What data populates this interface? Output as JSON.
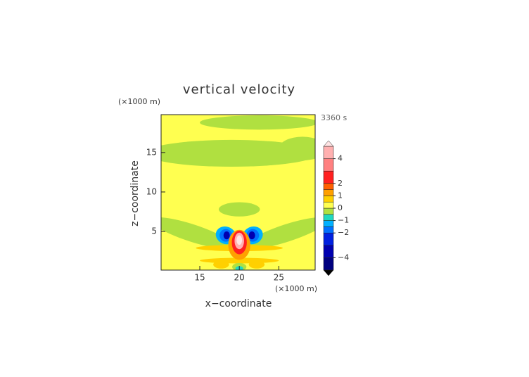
{
  "chart_data": {
    "type": "contour",
    "title": "vertical velocity",
    "x_label": "x−coordinate",
    "y_label": "z−coordinate",
    "x_unit": "(×1000 m)",
    "y_unit": "(×1000 m)",
    "time_label": "3360 s",
    "xlim": [
      10.1,
      29.6
    ],
    "ylim": [
      0.1,
      19.8
    ],
    "xticks": [
      15,
      20,
      25
    ],
    "yticks": [
      5,
      10,
      15
    ],
    "base_value": 0.25,
    "levels": [
      -5,
      -4,
      -3,
      -2,
      -1.5,
      -1,
      -0.5,
      0,
      0.5,
      1,
      1.5,
      2,
      3,
      4,
      5
    ],
    "colors": [
      "#000080",
      "#0000b0",
      "#0020e0",
      "#0070ff",
      "#00b0ff",
      "#20d8c0",
      "#b0e040",
      "#ffff50",
      "#ffd000",
      "#ffa000",
      "#ff6000",
      "#ff2020",
      "#ff8080",
      "#ffb0b0"
    ],
    "under_color": "#000000",
    "over_color": "#ffe4e4",
    "colorbar_ticks": [
      {
        "value": 4,
        "label": "4"
      },
      {
        "value": 2,
        "label": "2"
      },
      {
        "value": 1,
        "label": "1"
      },
      {
        "value": 0,
        "label": "0"
      },
      {
        "value": -1,
        "label": "−1"
      },
      {
        "value": -2,
        "label": "−2"
      },
      {
        "value": -4,
        "label": "−4"
      }
    ],
    "regions": [
      {
        "x": 22.5,
        "z": 18.8,
        "rx": 7.5,
        "rz": 0.9,
        "angle": 0,
        "value": -0.2
      },
      {
        "x": 19,
        "z": 14.9,
        "rx": 11,
        "rz": 1.7,
        "angle": 0,
        "value": -0.2
      },
      {
        "x": 28,
        "z": 15.5,
        "rx": 3,
        "rz": 1.5,
        "angle": 0,
        "value": -0.2
      },
      {
        "x": 20,
        "z": 7.8,
        "rx": 2.6,
        "rz": 0.9,
        "angle": 0,
        "value": -0.2
      },
      {
        "x": 14,
        "z": 4.8,
        "rx": 5.5,
        "rz": 1.1,
        "angle": -18,
        "value": -0.2
      },
      {
        "x": 26,
        "z": 4.8,
        "rx": 5.5,
        "rz": 1.1,
        "angle": 18,
        "value": -0.2
      },
      {
        "x": 20,
        "z": 2.9,
        "rx": 5.5,
        "rz": 0.4,
        "angle": 0,
        "value": 0.7
      },
      {
        "x": 20,
        "z": 1.3,
        "rx": 5,
        "rz": 0.35,
        "angle": 0,
        "value": 0.7
      },
      {
        "x": 17.7,
        "z": 0.8,
        "rx": 1,
        "rz": 0.5,
        "angle": 0,
        "value": 0.8
      },
      {
        "x": 22.2,
        "z": 0.8,
        "rx": 1,
        "rz": 0.5,
        "angle": 0,
        "value": 0.8
      },
      {
        "x": 20,
        "z": 0.5,
        "rx": 0.9,
        "rz": 0.5,
        "angle": 0,
        "value": -0.3
      },
      {
        "x": 20,
        "z": 0.3,
        "rx": 0.5,
        "rz": 0.3,
        "angle": 0,
        "value": -0.8
      },
      {
        "x": 18.3,
        "z": 4.5,
        "rx": 1.3,
        "rz": 1.1,
        "angle": -20,
        "value": -1.2
      },
      {
        "x": 21.7,
        "z": 4.5,
        "rx": 1.3,
        "rz": 1.1,
        "angle": 20,
        "value": -1.2
      },
      {
        "x": 18.3,
        "z": 4.5,
        "rx": 0.8,
        "rz": 0.8,
        "angle": -20,
        "value": -1.8
      },
      {
        "x": 21.7,
        "z": 4.5,
        "rx": 0.8,
        "rz": 0.8,
        "angle": 20,
        "value": -1.8
      },
      {
        "x": 18.4,
        "z": 4.5,
        "rx": 0.4,
        "rz": 0.5,
        "angle": 0,
        "value": -3.5
      },
      {
        "x": 21.6,
        "z": 4.5,
        "rx": 0.4,
        "rz": 0.5,
        "angle": 0,
        "value": -3.5
      },
      {
        "x": 20,
        "z": 3.3,
        "rx": 1.4,
        "rz": 1.9,
        "angle": 0,
        "value": 1.2
      },
      {
        "x": 20,
        "z": 3.6,
        "rx": 0.95,
        "rz": 1.5,
        "angle": 0,
        "value": 2.5
      },
      {
        "x": 20,
        "z": 3.8,
        "rx": 0.6,
        "rz": 1.05,
        "angle": 0,
        "value": 4.5
      },
      {
        "x": 20,
        "z": 3.9,
        "rx": 0.35,
        "rz": 0.6,
        "angle": 0,
        "value": 5.5
      }
    ]
  }
}
